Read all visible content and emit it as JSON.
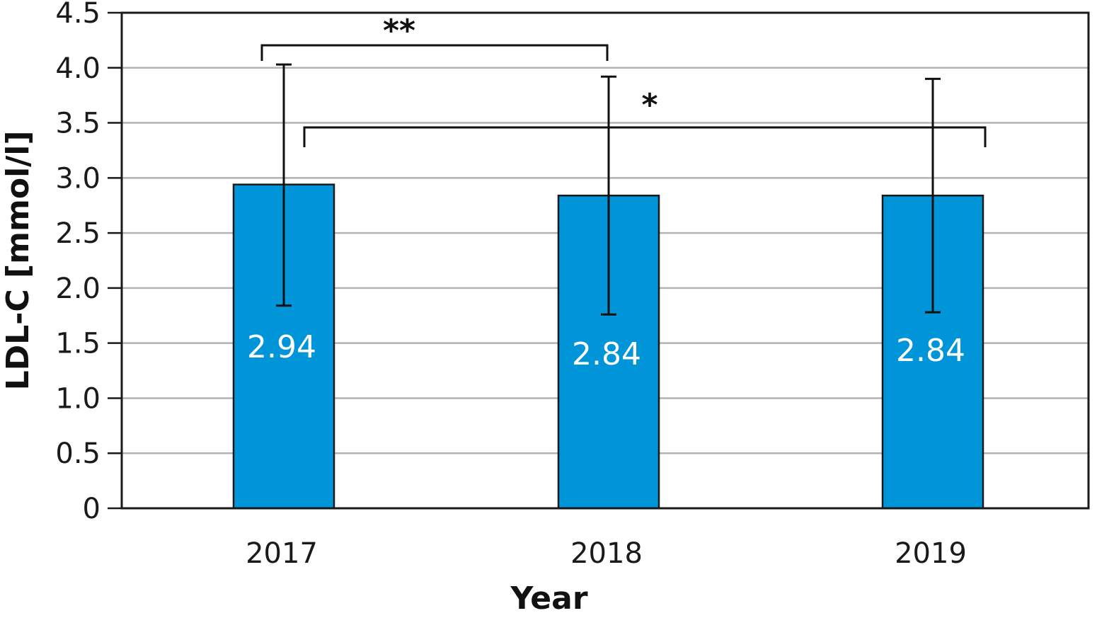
{
  "chart_data": {
    "type": "bar",
    "categories": [
      "2017",
      "2018",
      "2019"
    ],
    "values": [
      2.94,
      2.84,
      2.84
    ],
    "value_labels": [
      "2.94",
      "2.84",
      "2.84"
    ],
    "error_bars": [
      {
        "low": 1.84,
        "high": 4.03
      },
      {
        "low": 1.76,
        "high": 3.92
      },
      {
        "low": 1.78,
        "high": 3.9
      }
    ],
    "xlabel": "Year",
    "ylabel": "LDL-C [mmol/l]",
    "ylim": [
      0,
      4.5
    ],
    "yticks": [
      "0",
      "0.5",
      "1.0",
      "1.5",
      "2.0",
      "2.5",
      "3.0",
      "3.5",
      "4.0",
      "4.5"
    ],
    "grid": true,
    "significance": [
      {
        "from": "2017",
        "to": "2018",
        "label": "**"
      },
      {
        "from": "2017",
        "to": "2019",
        "label": "*"
      }
    ],
    "colors": {
      "bar": "#0094d9",
      "bar_edge": "#1a1a1a",
      "grid": "#b3b3b3",
      "axis": "#1a1a1a"
    }
  }
}
